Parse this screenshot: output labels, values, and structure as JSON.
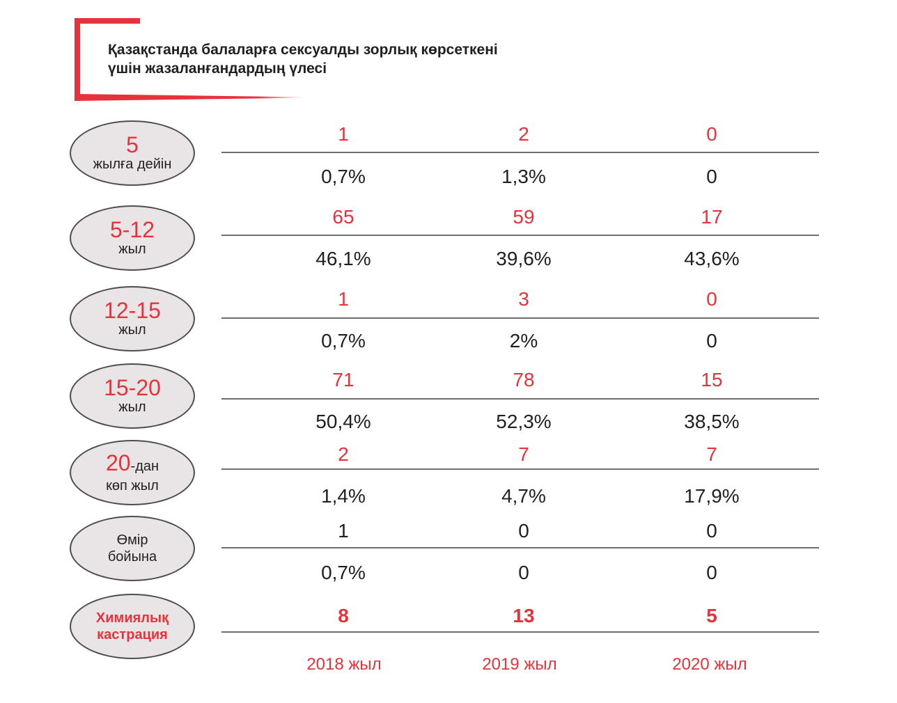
{
  "title": {
    "line1": "Қазақстанда балаларға сексуалды зорлық көрсеткені",
    "line2": "үшін жазаланғандардың үлесі"
  },
  "colors": {
    "accent": "#e5323b",
    "text": "#231f20",
    "oval_fill": "#e9e5e6",
    "divider": "#6d6e71"
  },
  "chart_data": {
    "type": "table",
    "title": "Қазақстанда балаларға сексуалды зорлық көрсеткені үшін жазаланғандардың үлесі",
    "columns": [
      "2018 жыл",
      "2019 жыл",
      "2020 жыл"
    ],
    "rows": [
      {
        "label_big": "5",
        "label_small": "жылға дейін",
        "counts": [
          "1",
          "2",
          "0"
        ],
        "shares": [
          "0,7%",
          "1,3%",
          "0"
        ]
      },
      {
        "label_big": "5-12",
        "label_small": "жыл",
        "counts": [
          "65",
          "59",
          "17"
        ],
        "shares": [
          "46,1%",
          "39,6%",
          "43,6%"
        ]
      },
      {
        "label_big": "12-15",
        "label_small": "жыл",
        "counts": [
          "1",
          "3",
          "0"
        ],
        "shares": [
          "0,7%",
          "2%",
          "0"
        ]
      },
      {
        "label_big": "15-20",
        "label_small": "жыл",
        "counts": [
          "71",
          "78",
          "15"
        ],
        "shares": [
          "50,4%",
          "52,3%",
          "38,5%"
        ]
      },
      {
        "label_big": "20",
        "label_suffix": "-дан",
        "label_small": "көп жыл",
        "counts": [
          "2",
          "7",
          "7"
        ],
        "shares": [
          "1,4%",
          "4,7%",
          "17,9%"
        ]
      },
      {
        "label_line1": "Өмір",
        "label_line2": "бойына",
        "counts": [
          "1",
          "0",
          "0"
        ],
        "shares": [
          "0,7%",
          "0",
          "0"
        ]
      },
      {
        "label_line1": "Химиялық",
        "label_line2": "кастрация",
        "counts": [
          "8",
          "13",
          "5"
        ]
      }
    ]
  }
}
